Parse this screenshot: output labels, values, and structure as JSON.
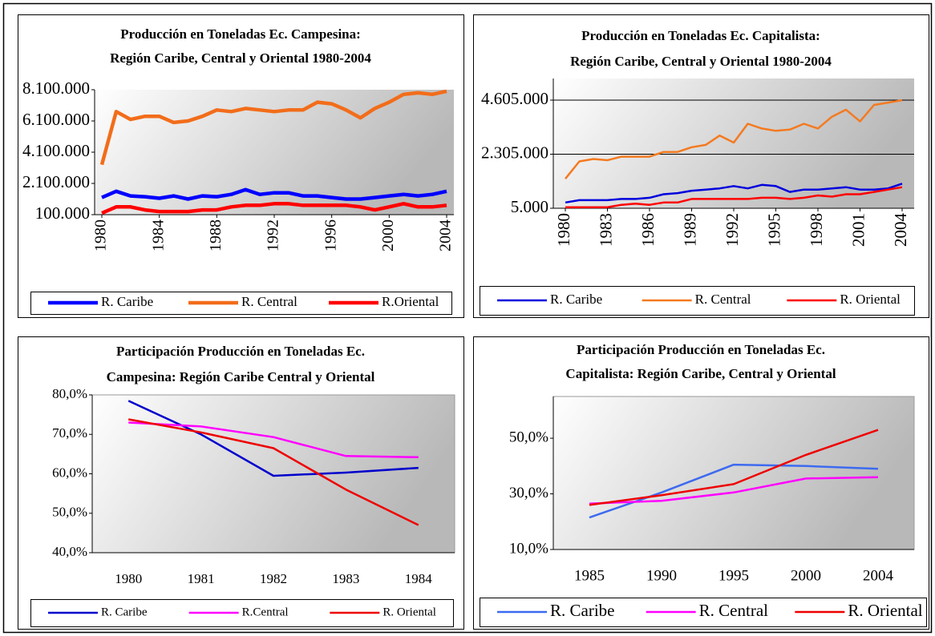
{
  "chart_data": [
    {
      "type": "line",
      "title": [
        "Producción en Toneladas Ec. Campesina:",
        "Región Caribe, Central y Oriental 1980-2004"
      ],
      "x": [
        1980,
        1981,
        1982,
        1983,
        1984,
        1985,
        1986,
        1987,
        1988,
        1989,
        1990,
        1991,
        1992,
        1993,
        1994,
        1995,
        1996,
        1997,
        1998,
        1999,
        2000,
        2001,
        2002,
        2003,
        2004
      ],
      "xlim": [
        1980,
        2004
      ],
      "xticks": [
        1980,
        1984,
        1988,
        1992,
        1996,
        2000,
        2004
      ],
      "ylim": [
        100000,
        8100000
      ],
      "yticks": [
        {
          "value": 100000,
          "label": "100.000"
        },
        {
          "value": 2100000,
          "label": "2.100.000"
        },
        {
          "value": 4100000,
          "label": "4.100.000"
        },
        {
          "value": 6100000,
          "label": "6.100.000"
        },
        {
          "value": 8100000,
          "label": "8.100.000"
        }
      ],
      "grid": false,
      "series": [
        {
          "name": "R. Caribe",
          "color": "#0000ff",
          "values": [
            1200000,
            1600000,
            1300000,
            1250000,
            1150000,
            1300000,
            1100000,
            1300000,
            1250000,
            1400000,
            1700000,
            1400000,
            1500000,
            1500000,
            1300000,
            1300000,
            1200000,
            1100000,
            1100000,
            1200000,
            1300000,
            1400000,
            1300000,
            1400000,
            1600000
          ]
        },
        {
          "name": "R. Central",
          "color": "#f26d1a",
          "values": [
            3300000,
            6700000,
            6200000,
            6400000,
            6400000,
            6000000,
            6100000,
            6400000,
            6800000,
            6700000,
            6900000,
            6800000,
            6700000,
            6800000,
            6800000,
            7300000,
            7200000,
            6800000,
            6300000,
            6900000,
            7300000,
            7800000,
            7900000,
            7800000,
            8000000
          ]
        },
        {
          "name": "R.Oriental",
          "color": "#ff0000",
          "values": [
            200000,
            600000,
            600000,
            400000,
            300000,
            300000,
            300000,
            400000,
            400000,
            600000,
            700000,
            700000,
            800000,
            800000,
            700000,
            700000,
            700000,
            700000,
            600000,
            400000,
            600000,
            800000,
            600000,
            600000,
            700000
          ]
        }
      ]
    },
    {
      "type": "line",
      "title": [
        "Producción en Toneladas Ec. Capitalista:",
        "Región Caribe, Central y Oriental 1980-2004"
      ],
      "x": [
        1980,
        1981,
        1982,
        1983,
        1984,
        1985,
        1986,
        1987,
        1988,
        1989,
        1990,
        1991,
        1992,
        1993,
        1994,
        1995,
        1996,
        1997,
        1998,
        1999,
        2000,
        2001,
        2002,
        2003,
        2004
      ],
      "xlim": [
        1980,
        2004
      ],
      "xticks": [
        1980,
        1983,
        1986,
        1989,
        1992,
        1995,
        1998,
        2001,
        2004
      ],
      "ylim": [
        5000,
        5525000
      ],
      "yticks": [
        {
          "value": 5000,
          "label": "5.000"
        },
        {
          "value": 2305000,
          "label": "2.305.000"
        },
        {
          "value": 4605000,
          "label": "4.605.000"
        }
      ],
      "grid": true,
      "series": [
        {
          "name": "R. Caribe",
          "color": "#0000dd",
          "values": [
            250000,
            350000,
            350000,
            350000,
            400000,
            400000,
            450000,
            600000,
            650000,
            750000,
            800000,
            850000,
            950000,
            850000,
            1000000,
            950000,
            700000,
            800000,
            800000,
            850000,
            900000,
            800000,
            800000,
            850000,
            1050000
          ]
        },
        {
          "name": "R. Central",
          "color": "#f47a20",
          "values": [
            1260000,
            2000000,
            2100000,
            2050000,
            2200000,
            2200000,
            2200000,
            2400000,
            2400000,
            2600000,
            2700000,
            3100000,
            2800000,
            3600000,
            3400000,
            3300000,
            3350000,
            3600000,
            3400000,
            3900000,
            4200000,
            3700000,
            4400000,
            4500000,
            4600000
          ]
        },
        {
          "name": "R. Oriental",
          "color": "#ff0000",
          "values": [
            50000,
            50000,
            50000,
            50000,
            150000,
            200000,
            150000,
            250000,
            250000,
            400000,
            400000,
            400000,
            400000,
            400000,
            450000,
            450000,
            400000,
            450000,
            550000,
            500000,
            600000,
            600000,
            700000,
            800000,
            900000
          ]
        }
      ]
    },
    {
      "type": "line",
      "title": [
        "Participación Producción en Toneladas Ec.",
        "Campesina: Región Caribe Central y Oriental"
      ],
      "categories": [
        "1980",
        "1981",
        "1982",
        "1983",
        "1984"
      ],
      "ylim": [
        40,
        80
      ],
      "yticks": [
        {
          "value": 40,
          "label": "40,0%"
        },
        {
          "value": 50,
          "label": "50,0%"
        },
        {
          "value": 60,
          "label": "60,0%"
        },
        {
          "value": 70,
          "label": "70,0%"
        },
        {
          "value": 80,
          "label": "80,0%"
        }
      ],
      "grid": false,
      "series": [
        {
          "name": "R. Caribe",
          "color": "#0000cc",
          "values": [
            78.5,
            70,
            59.5,
            60.3,
            61.5
          ]
        },
        {
          "name": "R.Central",
          "color": "#ff00ff",
          "values": [
            73,
            72,
            69.3,
            64.5,
            64.2
          ]
        },
        {
          "name": "R. Oriental",
          "color": "#ee0000",
          "values": [
            73.8,
            70.5,
            66.5,
            56,
            47
          ]
        }
      ]
    },
    {
      "type": "line",
      "title": [
        "Participación Producción en Toneladas Ec.",
        "Capitalista: Región Caribe, Central y Oriental"
      ],
      "categories": [
        "1985",
        "1990",
        "1995",
        "2000",
        "2004"
      ],
      "ylim": [
        10,
        65
      ],
      "yticks": [
        {
          "value": 10,
          "label": "10,0%"
        },
        {
          "value": 30,
          "label": "30,0%"
        },
        {
          "value": 50,
          "label": "50,0%"
        }
      ],
      "grid": false,
      "series": [
        {
          "name": "R. Caribe",
          "color": "#3d6af0",
          "values": [
            21.5,
            30.5,
            40.5,
            40,
            39
          ]
        },
        {
          "name": "R. Central",
          "color": "#ff00ff",
          "values": [
            26.5,
            27.5,
            30.5,
            35.5,
            36
          ]
        },
        {
          "name": "R. Oriental",
          "color": "#ee0000",
          "values": [
            26,
            29.5,
            33.5,
            44,
            53
          ]
        }
      ]
    }
  ]
}
